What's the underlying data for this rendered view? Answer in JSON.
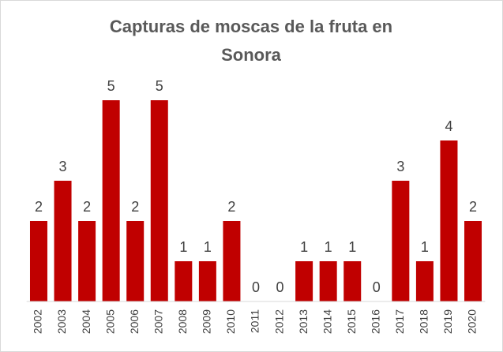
{
  "chart_data": {
    "type": "bar",
    "title": "Capturas de moscas de la fruta en Sonora",
    "categories": [
      "2002",
      "2003",
      "2004",
      "2005",
      "2006",
      "2007",
      "2008",
      "2009",
      "2010",
      "2011",
      "2012",
      "2013",
      "2014",
      "2015",
      "2016",
      "2017",
      "2018",
      "2019",
      "2020"
    ],
    "values": [
      2,
      3,
      2,
      5,
      2,
      5,
      1,
      1,
      2,
      0,
      0,
      1,
      1,
      1,
      0,
      3,
      1,
      4,
      2
    ],
    "color": "#c00000",
    "ylim": [
      0,
      6
    ]
  }
}
